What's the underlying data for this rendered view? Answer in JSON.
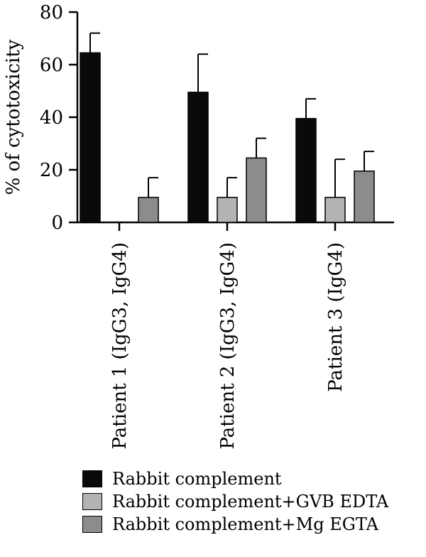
{
  "chart_data": {
    "type": "bar",
    "ylabel": "% of cytotoxicity",
    "xlabel": "",
    "ylim": [
      0,
      80
    ],
    "yticks": [
      0,
      20,
      40,
      60,
      80
    ],
    "categories": [
      "Patient 1 (IgG3, IgG4)",
      "Patient 2 (IgG3, IgG4)",
      "Patient 3 (IgG4)"
    ],
    "series": [
      {
        "name": "Rabbit complement",
        "color": "#0a0a0a",
        "values": [
          64.5,
          49.5,
          39.5
        ],
        "errors": [
          7.5,
          14.5,
          7.5
        ]
      },
      {
        "name": "Rabbit complement+GVB EDTA",
        "color": "#b3b3b3",
        "values": [
          0,
          9.5,
          9.5
        ],
        "errors": [
          0,
          7.5,
          14.5
        ]
      },
      {
        "name": "Rabbit complement+Mg EGTA",
        "color": "#8c8c8c",
        "values": [
          9.5,
          24.5,
          19.5
        ],
        "errors": [
          7.5,
          7.5,
          7.5
        ]
      }
    ],
    "grid": false,
    "legend_position": "bottom"
  }
}
